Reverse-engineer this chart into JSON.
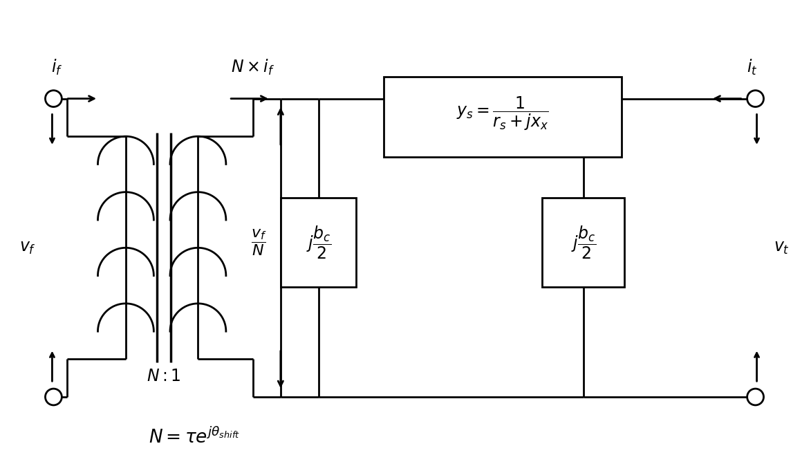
{
  "bg_color": "#ffffff",
  "line_color": "#000000",
  "fig_width": 11.73,
  "fig_height": 6.71,
  "dpi": 100
}
